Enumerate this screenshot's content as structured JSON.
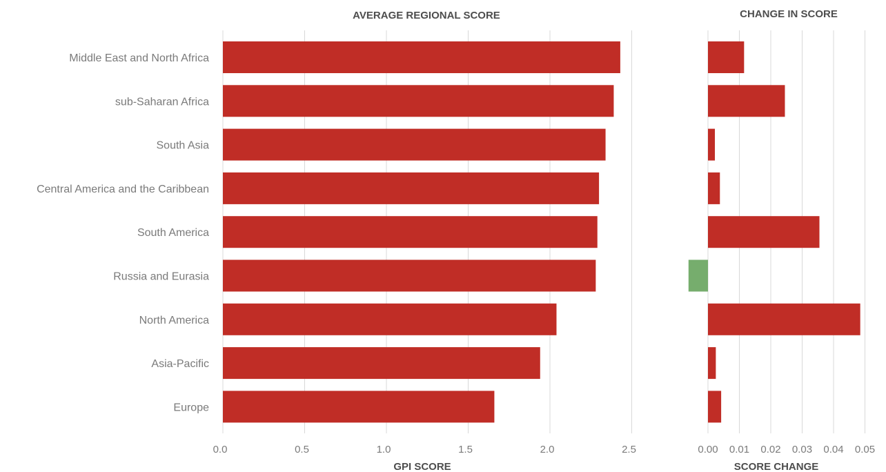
{
  "chart_data": [
    {
      "type": "bar",
      "orientation": "horizontal",
      "title": "AVERAGE REGIONAL SCORE",
      "xlabel": "GPI SCORE",
      "categories": [
        "Middle East and North Africa",
        "sub-Saharan Africa",
        "South Asia",
        "Central America and the Caribbean",
        "South America",
        "Russia and Eurasia",
        "North America",
        "Asia-Pacific",
        "Europe"
      ],
      "values": [
        2.43,
        2.39,
        2.34,
        2.3,
        2.29,
        2.28,
        2.04,
        1.94,
        1.66
      ],
      "xlim": [
        0,
        2.5
      ],
      "xticks": [
        "0.0",
        "0.5",
        "1.0",
        "1.5",
        "2.0",
        "2.5"
      ],
      "grid": true,
      "colors": {
        "bar": "#c02d26"
      }
    },
    {
      "type": "bar",
      "orientation": "horizontal",
      "title": "CHANGE IN SCORE",
      "xlabel": "SCORE CHANGE",
      "categories": [
        "Middle East and North Africa",
        "sub-Saharan Africa",
        "South Asia",
        "Central America and the Caribbean",
        "South America",
        "Russia and Eurasia",
        "North America",
        "Asia-Pacific",
        "Europe"
      ],
      "values": [
        0.0115,
        0.0245,
        0.0022,
        0.0038,
        0.0355,
        -0.0062,
        0.0485,
        0.0025,
        0.0042
      ],
      "xlim": [
        -0.006,
        0.05
      ],
      "xticks": [
        "0.00",
        "0.01",
        "0.02",
        "0.03",
        "0.04",
        "0.05"
      ],
      "grid": true,
      "colors": {
        "positive": "#c02d26",
        "negative": "#76ad6d"
      }
    }
  ]
}
